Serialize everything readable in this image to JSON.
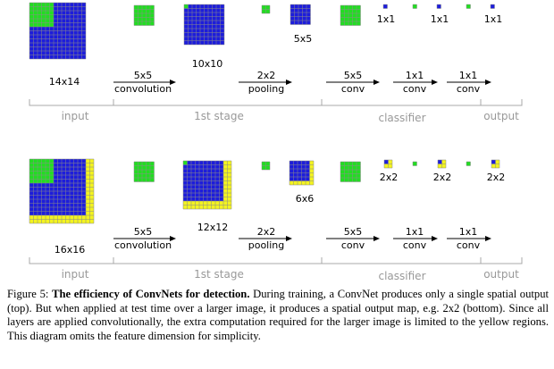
{
  "colors": {
    "blue": "#1d1ddb",
    "green": "#22dd22",
    "yellow": "#f3f320",
    "grid_line": "#8a8a8a",
    "stage_text": "#999999",
    "bracket": "#a8a8a8"
  },
  "top_panel": {
    "sizes": {
      "input": "14x14",
      "stage1": "10x10",
      "pool": "5x5",
      "c1": "1x1",
      "c2": "1x1",
      "c3": "1x1"
    },
    "ops": {
      "conv_size": "5x5",
      "conv_label": "convolution",
      "pool_size": "2x2",
      "pool_label": "pooling",
      "cls1_size": "5x5",
      "cls1_label": "conv",
      "cls2_size": "1x1",
      "cls2_label": "conv",
      "cls3_size": "1x1",
      "cls3_label": "conv"
    },
    "stages": {
      "input": "input",
      "stage1": "1st stage",
      "classifier": "classifier",
      "output": "output"
    }
  },
  "bottom_panel": {
    "sizes": {
      "input": "16x16",
      "stage1": "12x12",
      "pool": "6x6",
      "c1": "2x2",
      "c2": "2x2",
      "c3": "2x2"
    },
    "ops": {
      "conv_size": "5x5",
      "conv_label": "convolution",
      "pool_size": "2x2",
      "pool_label": "pooling",
      "cls1_size": "5x5",
      "cls1_label": "conv",
      "cls2_size": "1x1",
      "cls2_label": "conv",
      "cls3_size": "1x1",
      "cls3_label": "conv"
    },
    "stages": {
      "input": "input",
      "stage1": "1st stage",
      "classifier": "classifier",
      "output": "output"
    }
  },
  "caption": {
    "figure": "Figure 5:",
    "title": "The efficiency of ConvNets for detection.",
    "body": "During training, a ConvNet produces only a single spatial output (top). But when applied at test time over a larger image, it produces a spatial output map, e.g. 2x2 (bottom). Since all layers are applied convolutionally, the extra computation required for the larger image is limited to the yellow regions. This diagram omits the feature dimension for simplicity."
  }
}
